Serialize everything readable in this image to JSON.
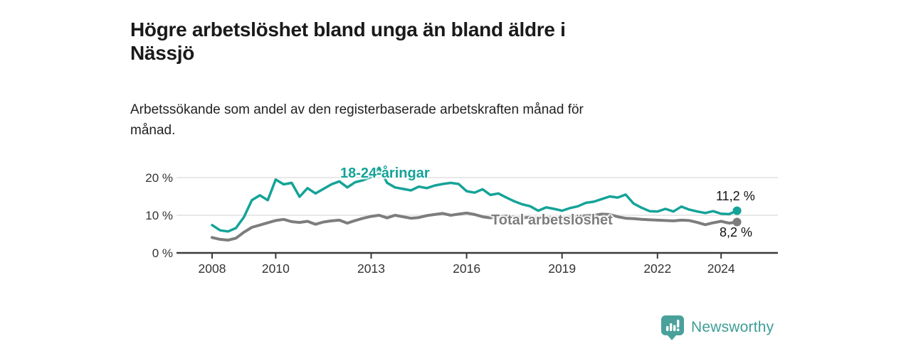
{
  "header": {
    "title_lines": [
      "Högre arbetslöshet bland unga än bland äldre i",
      "Nässjö"
    ],
    "subtitle_lines": [
      "Arbetssökande som andel av den registerbaserade arbetskraften månad för",
      "månad."
    ]
  },
  "chart_data": {
    "type": "line",
    "title": "Högre arbetslöshet bland unga än bland äldre i Nässjö",
    "subtitle": "Arbetssökande som andel av den registerbaserade arbetskraften månad för månad.",
    "xlabel": "",
    "ylabel": "",
    "grid": "horizontal-only",
    "legend_position": "inline-labels",
    "xlim": [
      2007.6,
      2025.4
    ],
    "ylim": [
      0,
      24.7
    ],
    "x_ticks": [
      2008,
      2010,
      2013,
      2016,
      2019,
      2022,
      2024
    ],
    "x_tick_labels": [
      "2008",
      "2010",
      "2013",
      "2016",
      "2019",
      "2022",
      "2024"
    ],
    "y_ticks": [
      0,
      10,
      20
    ],
    "y_tick_labels": [
      "0 %",
      "10 %",
      "20 %"
    ],
    "x_unit": "year (monthly data shown, sampled quarterly here)",
    "x": [
      2008.0,
      2008.25,
      2008.5,
      2008.75,
      2009.0,
      2009.25,
      2009.5,
      2009.75,
      2010.0,
      2010.25,
      2010.5,
      2010.75,
      2011.0,
      2011.25,
      2011.5,
      2011.75,
      2012.0,
      2012.25,
      2012.5,
      2012.75,
      2013.0,
      2013.25,
      2013.5,
      2013.75,
      2014.0,
      2014.25,
      2014.5,
      2014.75,
      2015.0,
      2015.25,
      2015.5,
      2015.75,
      2016.0,
      2016.25,
      2016.5,
      2016.75,
      2017.0,
      2017.25,
      2017.5,
      2017.75,
      2018.0,
      2018.25,
      2018.5,
      2018.75,
      2019.0,
      2019.25,
      2019.5,
      2019.75,
      2020.0,
      2020.25,
      2020.5,
      2020.75,
      2021.0,
      2021.25,
      2021.5,
      2021.75,
      2022.0,
      2022.25,
      2022.5,
      2022.75,
      2023.0,
      2023.25,
      2023.5,
      2023.75,
      2024.0,
      2024.25,
      2024.5
    ],
    "series": [
      {
        "name": "18-24-åringar",
        "color": "#14a398",
        "end_value_label": "11,2 %",
        "end_value": 11.2,
        "values": [
          7.4,
          6.0,
          5.7,
          6.6,
          9.5,
          14.0,
          15.3,
          14.0,
          19.5,
          18.2,
          18.6,
          14.9,
          17.2,
          15.8,
          17.0,
          18.2,
          19.0,
          17.4,
          18.8,
          19.3,
          20.2,
          22.6,
          18.6,
          17.4,
          17.0,
          16.6,
          17.6,
          17.2,
          17.9,
          18.3,
          18.6,
          18.3,
          16.4,
          16.0,
          16.9,
          15.4,
          15.8,
          14.7,
          13.7,
          12.9,
          12.4,
          11.2,
          12.1,
          11.7,
          11.2,
          11.9,
          12.4,
          13.3,
          13.6,
          14.3,
          15.0,
          14.7,
          15.5,
          13.1,
          12.0,
          11.1,
          11.0,
          11.7,
          11.0,
          12.3,
          11.5,
          11.0,
          10.6,
          11.1,
          10.4,
          10.3,
          11.2
        ]
      },
      {
        "name": "Total arbetslöshet",
        "color": "#7d7d7d",
        "end_value_label": "8,2 %",
        "end_value": 8.2,
        "values": [
          4.1,
          3.6,
          3.4,
          3.9,
          5.5,
          6.8,
          7.4,
          8.0,
          8.6,
          8.9,
          8.3,
          8.1,
          8.4,
          7.6,
          8.2,
          8.5,
          8.7,
          7.9,
          8.6,
          9.2,
          9.7,
          10.0,
          9.3,
          10.0,
          9.6,
          9.2,
          9.4,
          9.9,
          10.2,
          10.5,
          10.0,
          10.3,
          10.6,
          10.2,
          9.6,
          9.3,
          9.6,
          9.8,
          9.5,
          9.3,
          9.5,
          9.2,
          9.4,
          9.3,
          9.4,
          9.5,
          9.7,
          9.9,
          10.0,
          10.3,
          10.2,
          9.6,
          9.2,
          9.1,
          8.9,
          8.8,
          8.7,
          8.6,
          8.5,
          8.7,
          8.6,
          8.1,
          7.5,
          8.0,
          8.4,
          7.9,
          8.2
        ]
      }
    ],
    "colors": {
      "axis": "#3a3a3a",
      "gridline": "#e1e1e1",
      "tick_label": "#333333",
      "end_label_text": "#111111"
    }
  },
  "footer": {
    "brand": "Newsworthy",
    "brand_color": "#3f9d96",
    "logo_icon": "bar-chart-speech-bubble",
    "logo_fill": "#4aa19b"
  }
}
